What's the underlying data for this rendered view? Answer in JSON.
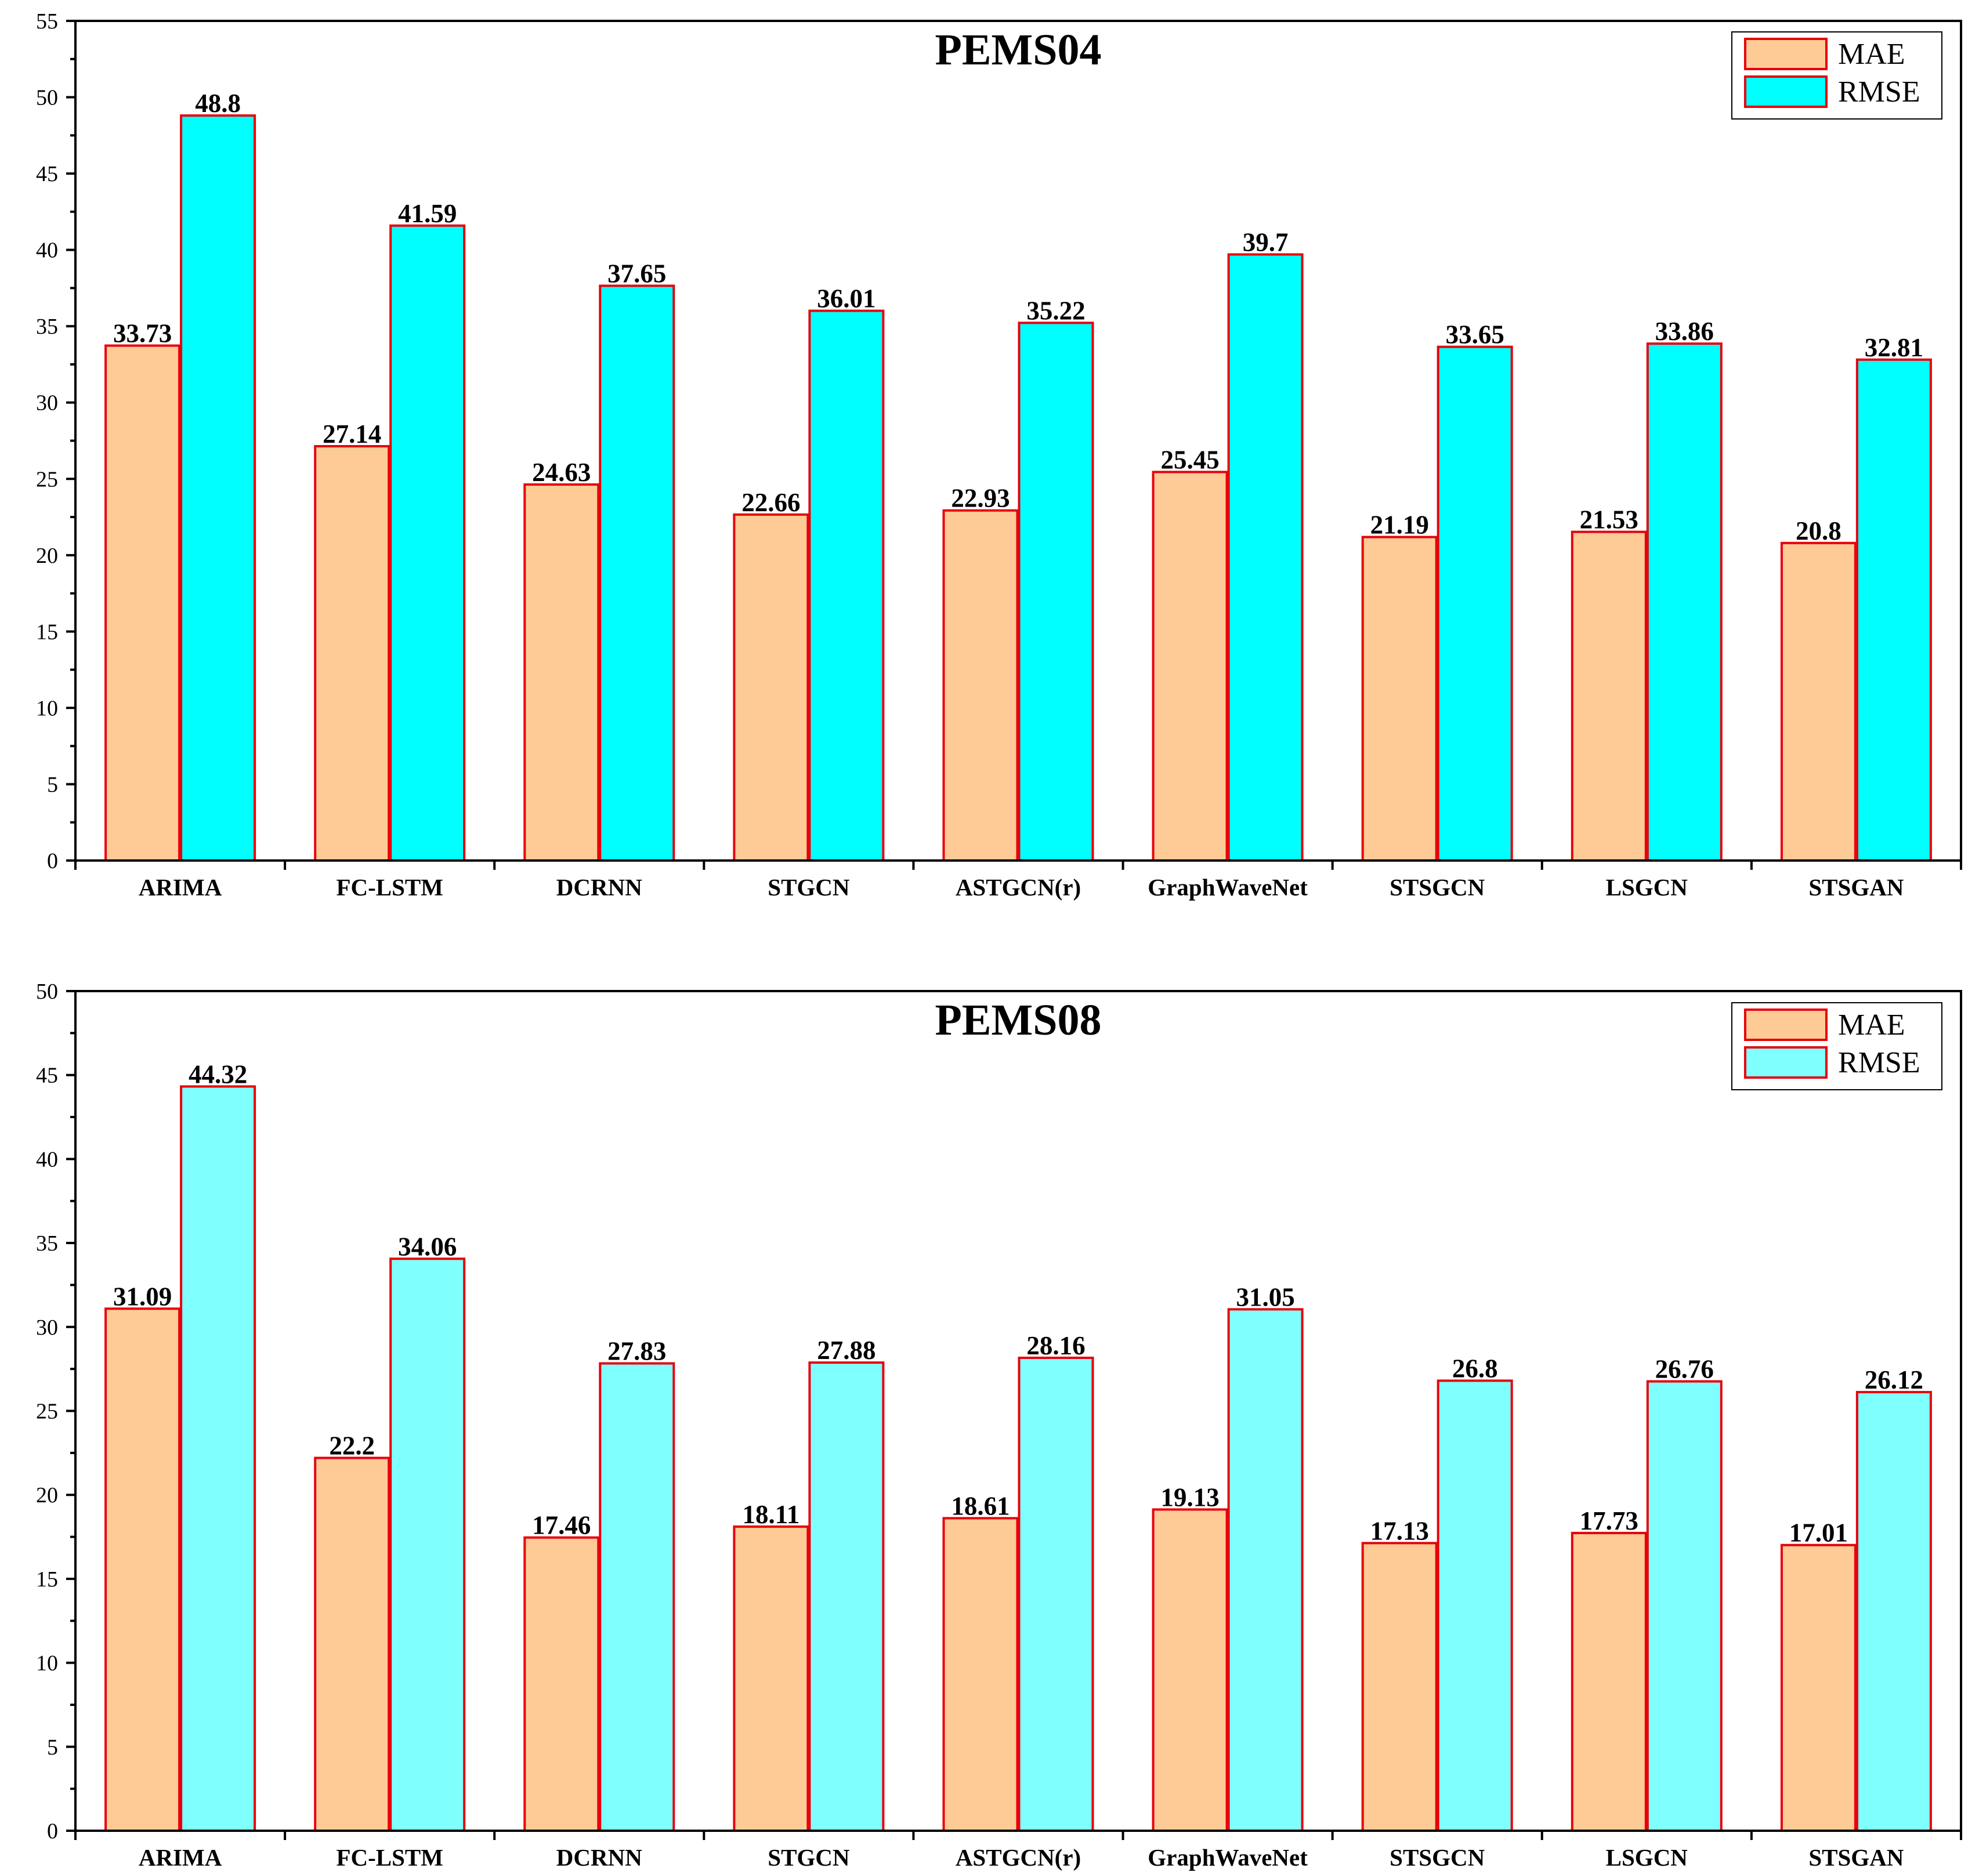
{
  "chart_data": [
    {
      "type": "bar",
      "title": "PEMS04",
      "categories": [
        "ARIMA",
        "FC-LSTM",
        "DCRNN",
        "STGCN",
        "ASTGCN(r)",
        "GraphWaveNet",
        "STSGCN",
        "LSGCN",
        "STSGAN"
      ],
      "series": [
        {
          "name": "MAE",
          "color": "#fecb96",
          "values": [
            33.73,
            27.14,
            24.63,
            22.66,
            22.93,
            25.45,
            21.19,
            21.53,
            20.8
          ],
          "labels": [
            "33.73",
            "27.14",
            "24.63",
            "22.66",
            "22.93",
            "25.45",
            "21.19",
            "21.53",
            "20.8"
          ]
        },
        {
          "name": "RMSE",
          "color": "#00ffff",
          "values": [
            48.8,
            41.59,
            37.65,
            36.01,
            35.22,
            39.7,
            33.65,
            33.86,
            32.81
          ],
          "labels": [
            "48.8",
            "41.59",
            "37.65",
            "36.01",
            "35.22",
            "39.7",
            "33.65",
            "33.86",
            "32.81"
          ]
        }
      ],
      "xlabel": "",
      "ylabel": "",
      "ylim": [
        0,
        55
      ],
      "yticks": [
        0,
        5,
        10,
        15,
        20,
        25,
        30,
        35,
        40,
        45,
        50,
        55
      ],
      "legend_position": "top-right",
      "grid": false
    },
    {
      "type": "bar",
      "title": "PEMS08",
      "categories": [
        "ARIMA",
        "FC-LSTM",
        "DCRNN",
        "STGCN",
        "ASTGCN(r)",
        "GraphWaveNet",
        "STSGCN",
        "LSGCN",
        "STSGAN"
      ],
      "series": [
        {
          "name": "MAE",
          "color": "#fecb96",
          "values": [
            31.09,
            22.2,
            17.46,
            18.11,
            18.61,
            19.13,
            17.13,
            17.73,
            17.01
          ],
          "labels": [
            "31.09",
            "22.2",
            "17.46",
            "18.11",
            "18.61",
            "19.13",
            "17.13",
            "17.73",
            "17.01"
          ]
        },
        {
          "name": "RMSE",
          "color": "#80ffff",
          "values": [
            44.32,
            34.06,
            27.83,
            27.88,
            28.16,
            31.05,
            26.8,
            26.76,
            26.12
          ],
          "labels": [
            "44.32",
            "34.06",
            "27.83",
            "27.88",
            "28.16",
            "31.05",
            "26.8",
            "26.76",
            "26.12"
          ]
        }
      ],
      "xlabel": "",
      "ylabel": "",
      "ylim": [
        0,
        50
      ],
      "yticks": [
        0,
        5,
        10,
        15,
        20,
        25,
        30,
        35,
        40,
        45,
        50
      ],
      "legend_position": "top-right",
      "grid": false
    }
  ]
}
